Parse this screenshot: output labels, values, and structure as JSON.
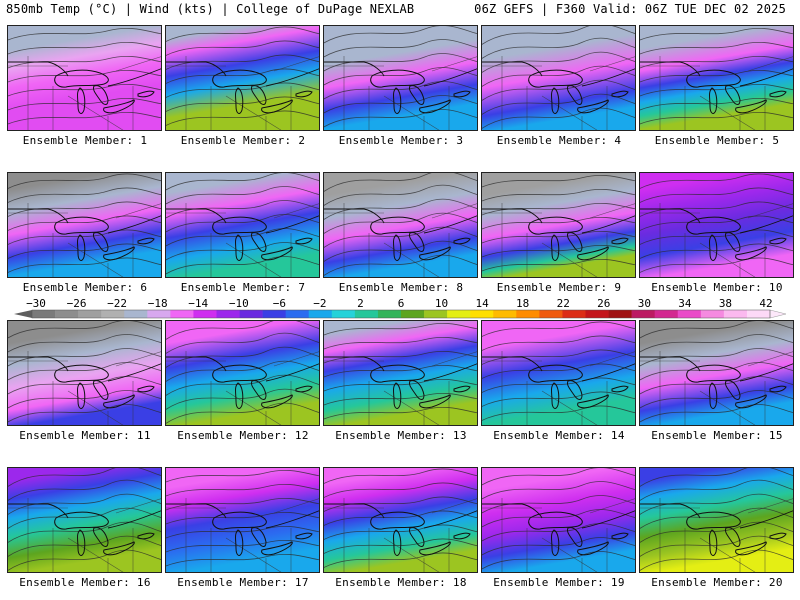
{
  "header": {
    "left": "850mb Temp (°C) | Wind (kts) | College of DuPage NEXLAB",
    "right": "06Z GEFS | F360 Valid: 06Z TUE DEC 02 2025"
  },
  "colorbar": {
    "ticks": [
      "−30",
      "−26",
      "−22",
      "−18",
      "−14",
      "−10",
      "−6",
      "−2",
      "2",
      "6",
      "10",
      "14",
      "18",
      "22",
      "26",
      "30",
      "34",
      "38",
      "42"
    ],
    "colors": [
      "#7a7a7a",
      "#8d8d8d",
      "#9f9f9f",
      "#b0b0b0",
      "#a9b6cf",
      "#d7a8ef",
      "#f066f5",
      "#cf2ef0",
      "#9c28ec",
      "#6a2be0",
      "#3a3fe5",
      "#2b6cf0",
      "#19a8ec",
      "#25d2d9",
      "#25c79a",
      "#33b45a",
      "#5da51f",
      "#9cc521",
      "#e4ee14",
      "#ffdf00",
      "#ffbb00",
      "#ff8c00",
      "#f05a0e",
      "#dc2d16",
      "#c4151b",
      "#a01213",
      "#bc1a62",
      "#d32890",
      "#ea4bc8",
      "#f58ae0",
      "#fbb9ef",
      "#fdd9f7"
    ]
  },
  "panels": [
    {
      "label": "Ensemble Member: 1",
      "palette": [
        "#a9b6cf",
        "#e9a4f1",
        "#f066f5",
        "#e14cf2"
      ],
      "shades": [
        0.22,
        0.38,
        0.55,
        0.75
      ]
    },
    {
      "label": "Ensemble Member: 2",
      "palette": [
        "#a9b6cf",
        "#f066f5",
        "#3a3fe5",
        "#19a8ec",
        "#9cc521"
      ],
      "shades": [
        0.12,
        0.25,
        0.45,
        0.62,
        0.82
      ]
    },
    {
      "label": "Ensemble Member: 3",
      "palette": [
        "#a9b6cf",
        "#f066f5",
        "#3a3fe5",
        "#19a8ec"
      ],
      "shades": [
        0.35,
        0.55,
        0.75,
        0.92
      ]
    },
    {
      "label": "Ensemble Member: 4",
      "palette": [
        "#a9b6cf",
        "#f066f5",
        "#3a3fe5",
        "#19a8ec"
      ],
      "shades": [
        0.3,
        0.55,
        0.8,
        0.95
      ]
    },
    {
      "label": "Ensemble Member: 5",
      "palette": [
        "#a9b6cf",
        "#f066f5",
        "#3a3fe5",
        "#19a8ec",
        "#25c79a",
        "#9cc521"
      ],
      "shades": [
        0.2,
        0.4,
        0.55,
        0.68,
        0.8,
        0.92
      ]
    },
    {
      "label": "Ensemble Member: 6",
      "palette": [
        "#8d8d8d",
        "#a9b6cf",
        "#f066f5",
        "#3a3fe5",
        "#19a8ec"
      ],
      "shades": [
        0.15,
        0.35,
        0.55,
        0.75,
        0.92
      ]
    },
    {
      "label": "Ensemble Member: 7",
      "palette": [
        "#a9b6cf",
        "#f066f5",
        "#3a3fe5",
        "#19a8ec",
        "#25c79a"
      ],
      "shades": [
        0.18,
        0.38,
        0.58,
        0.78,
        0.95
      ]
    },
    {
      "label": "Ensemble Member: 8",
      "palette": [
        "#9f9f9f",
        "#a9b6cf",
        "#f066f5",
        "#3a3fe5",
        "#19a8ec"
      ],
      "shades": [
        0.2,
        0.4,
        0.6,
        0.8,
        0.95
      ]
    },
    {
      "label": "Ensemble Member: 9",
      "palette": [
        "#9f9f9f",
        "#a9b6cf",
        "#f066f5",
        "#3a3fe5",
        "#25c79a",
        "#9cc521"
      ],
      "shades": [
        0.2,
        0.38,
        0.58,
        0.75,
        0.88,
        0.96
      ]
    },
    {
      "label": "Ensemble Member: 10",
      "palette": [
        "#cf2ef0",
        "#9c28ec",
        "#6a2be0",
        "#3a3fe5",
        "#f066f5"
      ],
      "shades": [
        0.15,
        0.35,
        0.55,
        0.75,
        0.95
      ]
    },
    {
      "label": "Ensemble Member: 11",
      "palette": [
        "#8d8d8d",
        "#a9b6cf",
        "#e9a4f1",
        "#f066f5",
        "#3a3fe5"
      ],
      "shades": [
        0.2,
        0.4,
        0.6,
        0.8,
        0.95
      ]
    },
    {
      "label": "Ensemble Member: 12",
      "palette": [
        "#f066f5",
        "#3a3fe5",
        "#19a8ec",
        "#25c79a",
        "#9cc521"
      ],
      "shades": [
        0.2,
        0.42,
        0.6,
        0.78,
        0.95
      ]
    },
    {
      "label": "Ensemble Member: 13",
      "palette": [
        "#a9b6cf",
        "#f066f5",
        "#3a3fe5",
        "#19a8ec",
        "#25c79a",
        "#9cc521"
      ],
      "shades": [
        0.12,
        0.28,
        0.45,
        0.62,
        0.8,
        0.95
      ]
    },
    {
      "label": "Ensemble Member: 14",
      "palette": [
        "#f066f5",
        "#3a3fe5",
        "#19a8ec",
        "#25c79a"
      ],
      "shades": [
        0.25,
        0.5,
        0.72,
        0.92
      ]
    },
    {
      "label": "Ensemble Member: 15",
      "palette": [
        "#8d8d8d",
        "#a9b6cf",
        "#f066f5",
        "#3a3fe5",
        "#19a8ec"
      ],
      "shades": [
        0.2,
        0.4,
        0.6,
        0.8,
        0.95
      ]
    },
    {
      "label": "Ensemble Member: 16",
      "palette": [
        "#9c28ec",
        "#3a3fe5",
        "#19a8ec",
        "#25c79a",
        "#5da51f",
        "#9cc521"
      ],
      "shades": [
        0.12,
        0.28,
        0.45,
        0.62,
        0.8,
        0.95
      ]
    },
    {
      "label": "Ensemble Member: 17",
      "palette": [
        "#f066f5",
        "#cf2ef0",
        "#3a3fe5",
        "#2b6cf0",
        "#19a8ec"
      ],
      "shades": [
        0.18,
        0.36,
        0.55,
        0.75,
        0.95
      ]
    },
    {
      "label": "Ensemble Member: 18",
      "palette": [
        "#f066f5",
        "#cf2ef0",
        "#3a3fe5",
        "#19a8ec",
        "#25c79a",
        "#9cc521"
      ],
      "shades": [
        0.15,
        0.32,
        0.5,
        0.66,
        0.82,
        0.96
      ]
    },
    {
      "label": "Ensemble Member: 19",
      "palette": [
        "#f066f5",
        "#cf2ef0",
        "#9c28ec",
        "#3a3fe5",
        "#19a8ec"
      ],
      "shades": [
        0.2,
        0.42,
        0.62,
        0.8,
        0.96
      ]
    },
    {
      "label": "Ensemble Member: 20",
      "palette": [
        "#3a3fe5",
        "#19a8ec",
        "#25c79a",
        "#5da51f",
        "#9cc521",
        "#e4ee14"
      ],
      "shades": [
        0.12,
        0.28,
        0.45,
        0.62,
        0.8,
        0.95
      ]
    }
  ]
}
